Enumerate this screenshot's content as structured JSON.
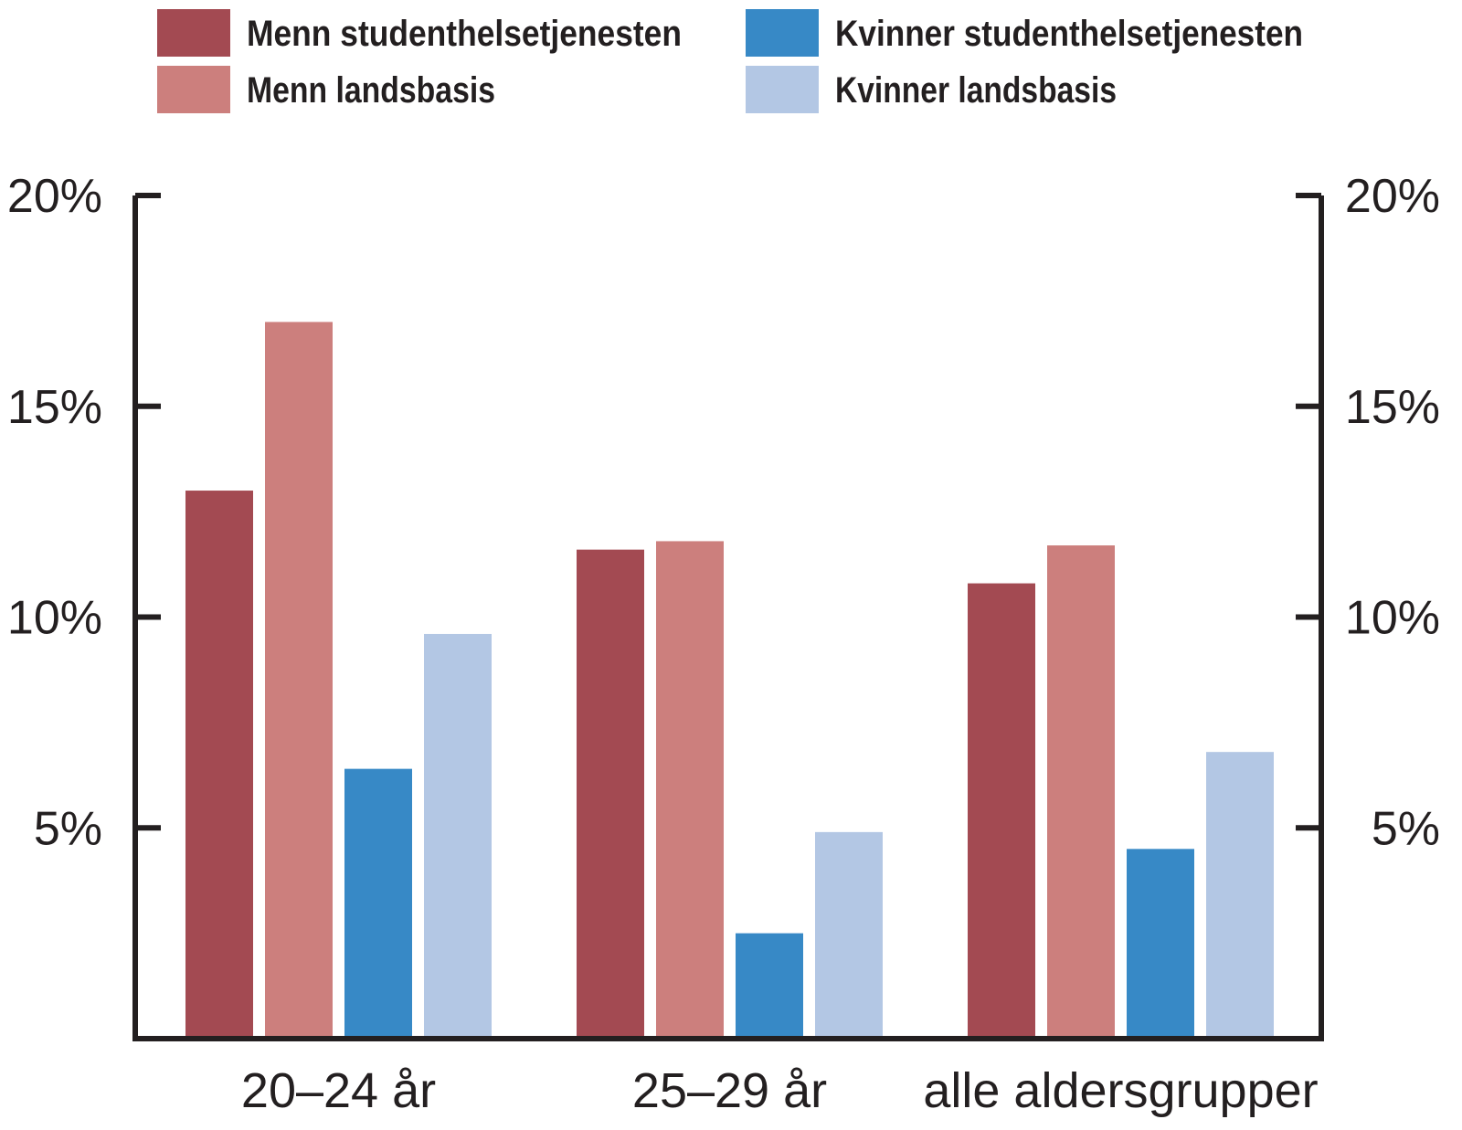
{
  "chart_data": {
    "type": "bar",
    "categories": [
      "20–24 år",
      "25–29 år",
      "alle aldersgrupper"
    ],
    "series": [
      {
        "name": "Menn studenthelsetjenesten",
        "color": "#a34a52",
        "values": [
          13.0,
          11.6,
          10.8
        ]
      },
      {
        "name": "Menn landsbasis",
        "color": "#cc7f7d",
        "values": [
          17.0,
          11.8,
          11.7
        ]
      },
      {
        "name": "Kvinner studenthelsetjenesten",
        "color": "#3789c6",
        "values": [
          6.4,
          2.5,
          4.5
        ]
      },
      {
        "name": "Kvinner landsbasis",
        "color": "#b3c7e4",
        "values": [
          9.6,
          4.9,
          6.8
        ]
      }
    ],
    "y_ticks": [
      {
        "value": 5,
        "label": "5%"
      },
      {
        "value": 10,
        "label": "10%"
      },
      {
        "value": 15,
        "label": "15%"
      },
      {
        "value": 20,
        "label": "20%"
      }
    ],
    "ylim": [
      0,
      20
    ],
    "axes": "left and right y-axes with identical ticks",
    "grid": false,
    "legend_position": "top",
    "axis_color": "#231f20"
  }
}
